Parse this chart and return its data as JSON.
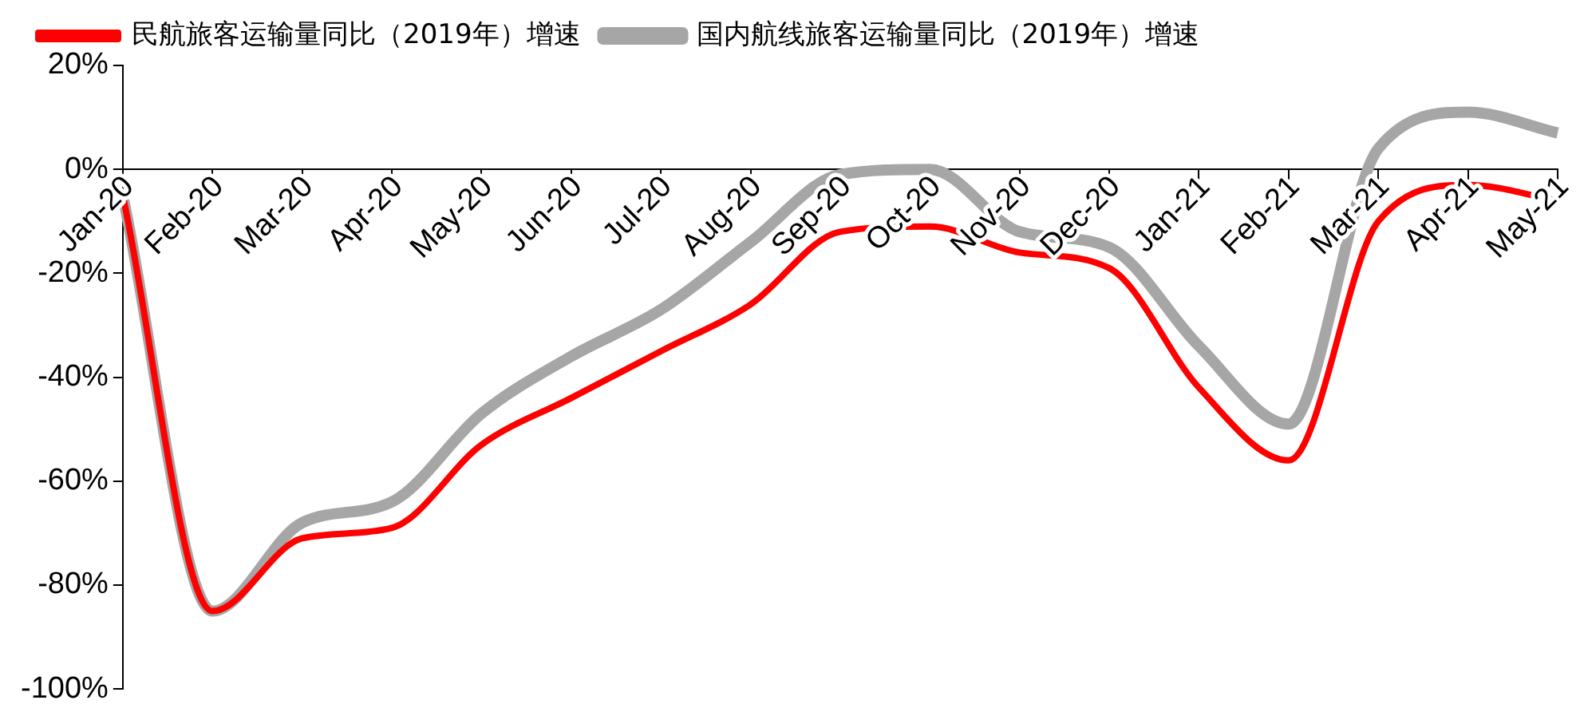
{
  "chart_data": {
    "type": "line",
    "categories": [
      "Jan-20",
      "Feb-20",
      "Mar-20",
      "Apr-20",
      "May-20",
      "Jun-20",
      "Jul-20",
      "Aug-20",
      "Sep-20",
      "Oct-20",
      "Nov-20",
      "Dec-20",
      "Jan-21",
      "Feb-21",
      "Mar-21",
      "Apr-21",
      "May-21"
    ],
    "series": [
      {
        "name": "民航旅客运输量同比（2019年）增速",
        "color": "#ff0000",
        "values": [
          -5,
          -85,
          -71,
          -69,
          -53,
          -44,
          -35,
          -26,
          -12,
          -11,
          -16,
          -19,
          -42,
          -56,
          -10,
          -3,
          -6
        ]
      },
      {
        "name": "国内航线旅客运输量同比（2019年）增速",
        "color": "#a6a6a6",
        "values": [
          -5,
          -85,
          -68,
          -64,
          -47,
          -36,
          -27,
          -14,
          -1,
          0,
          -12,
          -15,
          -34,
          -49,
          4,
          11,
          7
        ]
      }
    ],
    "ylim": [
      -100,
      20
    ],
    "yticks": [
      {
        "value": 20,
        "label": "20%"
      },
      {
        "value": 0,
        "label": "0%"
      },
      {
        "value": -20,
        "label": "-20%"
      },
      {
        "value": -40,
        "label": "-40%"
      },
      {
        "value": -60,
        "label": "-60%"
      },
      {
        "value": -80,
        "label": "-80%"
      },
      {
        "value": -100,
        "label": "-100%"
      }
    ],
    "legend": "top left",
    "marker": "none",
    "line_style": "solid"
  }
}
